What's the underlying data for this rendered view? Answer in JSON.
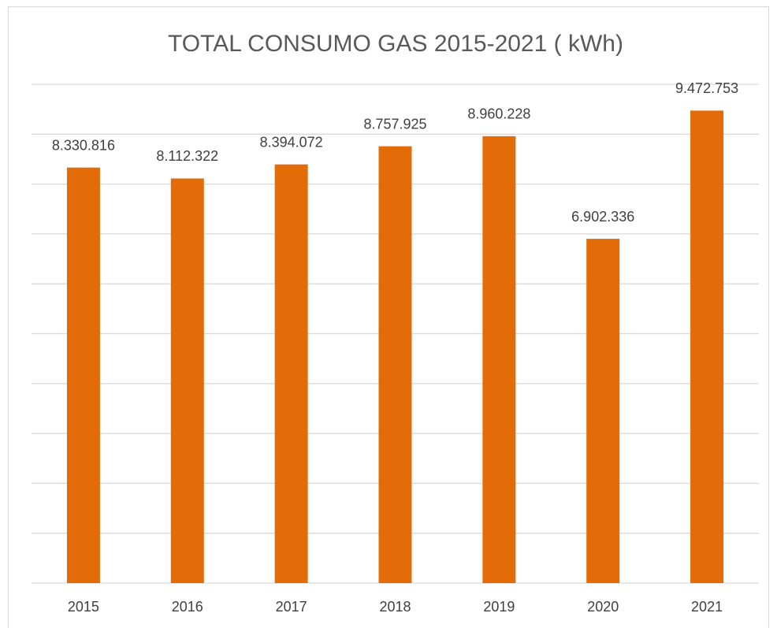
{
  "chart_data": {
    "type": "bar",
    "title": "TOTAL CONSUMO  GAS 2015-2021 ( kWh)",
    "categories": [
      "2015",
      "2016",
      "2017",
      "2018",
      "2019",
      "2020",
      "2021"
    ],
    "values": [
      8330816,
      8112322,
      8394072,
      8757925,
      8960228,
      6902336,
      9472753
    ],
    "value_labels": [
      "8.330.816",
      "8.112.322",
      "8.394.072",
      "8.757.925",
      "8.960.228",
      "6.902.336",
      "9.472.753"
    ],
    "color": "#e36c09",
    "ylim": [
      0,
      10000000
    ],
    "yticks": [
      0,
      1000000,
      2000000,
      3000000,
      4000000,
      5000000,
      6000000,
      7000000,
      8000000,
      9000000,
      10000000
    ],
    "grid": true
  }
}
